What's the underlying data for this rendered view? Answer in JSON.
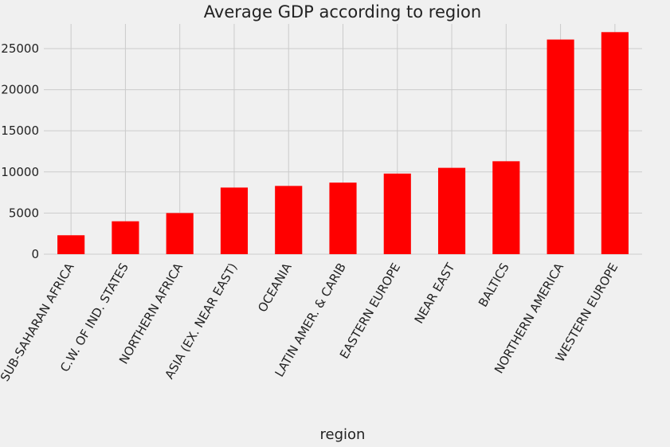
{
  "chart_data": {
    "type": "bar",
    "title": "Average GDP according to region",
    "xlabel": "region",
    "ylabel": "",
    "categories": [
      "SUB-SAHARAN AFRICA",
      "C.W. OF IND. STATES",
      "NORTHERN AFRICA",
      "ASIA (EX. NEAR EAST)",
      "OCEANIA",
      "LATIN AMER. & CARIB",
      "EASTERN EUROPE",
      "NEAR EAST",
      "BALTICS",
      "NORTHERN AMERICA",
      "WESTERN EUROPE"
    ],
    "values": [
      2300,
      4000,
      5000,
      8100,
      8300,
      8700,
      9800,
      10500,
      11300,
      26100,
      27000
    ],
    "ylim": [
      0,
      28000
    ],
    "yticks": [
      0,
      5000,
      10000,
      15000,
      20000,
      25000
    ],
    "bar_color": "#ff0000",
    "background": "#f0f0f0",
    "grid": true,
    "legend": false
  }
}
